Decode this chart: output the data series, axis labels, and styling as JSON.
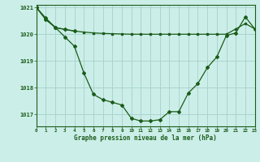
{
  "title": "Graphe pression niveau de la mer (hPa)",
  "bg_color": "#cceee8",
  "grid_color": "#aad4ce",
  "line_color": "#1a5c1a",
  "xlim": [
    0,
    23
  ],
  "ylim": [
    1016.55,
    1021.1
  ],
  "yticks": [
    1017,
    1018,
    1019,
    1020,
    1021
  ],
  "xticks": [
    0,
    1,
    2,
    3,
    4,
    5,
    6,
    7,
    8,
    9,
    10,
    11,
    12,
    13,
    14,
    15,
    16,
    17,
    18,
    19,
    20,
    21,
    22,
    23
  ],
  "series1_x": [
    0,
    1,
    2,
    3,
    4,
    5,
    6,
    7,
    8,
    9,
    10,
    11,
    12,
    13,
    14,
    15,
    16,
    17,
    18,
    19,
    20,
    21,
    22,
    23
  ],
  "series1_y": [
    1021.0,
    1020.55,
    1020.25,
    1020.18,
    1020.12,
    1020.08,
    1020.05,
    1020.03,
    1020.02,
    1020.01,
    1020.0,
    1020.0,
    1020.0,
    1020.0,
    1020.0,
    1020.0,
    1020.0,
    1020.0,
    1020.0,
    1020.0,
    1020.0,
    1020.2,
    1020.4,
    1020.2
  ],
  "series2_x": [
    0,
    1,
    2,
    3,
    4,
    5,
    6,
    7,
    8,
    9,
    10,
    11,
    12,
    13,
    14,
    15,
    16,
    17,
    18,
    19,
    20,
    21,
    22,
    23
  ],
  "series2_y": [
    1021.0,
    1020.6,
    1020.25,
    1019.9,
    1019.55,
    1018.55,
    1017.75,
    1017.55,
    1017.45,
    1017.35,
    1016.85,
    1016.75,
    1016.75,
    1016.8,
    1017.1,
    1017.1,
    1017.8,
    1018.15,
    1018.75,
    1019.15,
    1019.95,
    1020.05,
    1020.65,
    1020.2
  ],
  "series3_x": [
    0,
    1,
    2,
    3,
    4
  ],
  "series3_y": [
    1021.0,
    1020.55,
    1020.25,
    1020.18,
    1020.12
  ]
}
